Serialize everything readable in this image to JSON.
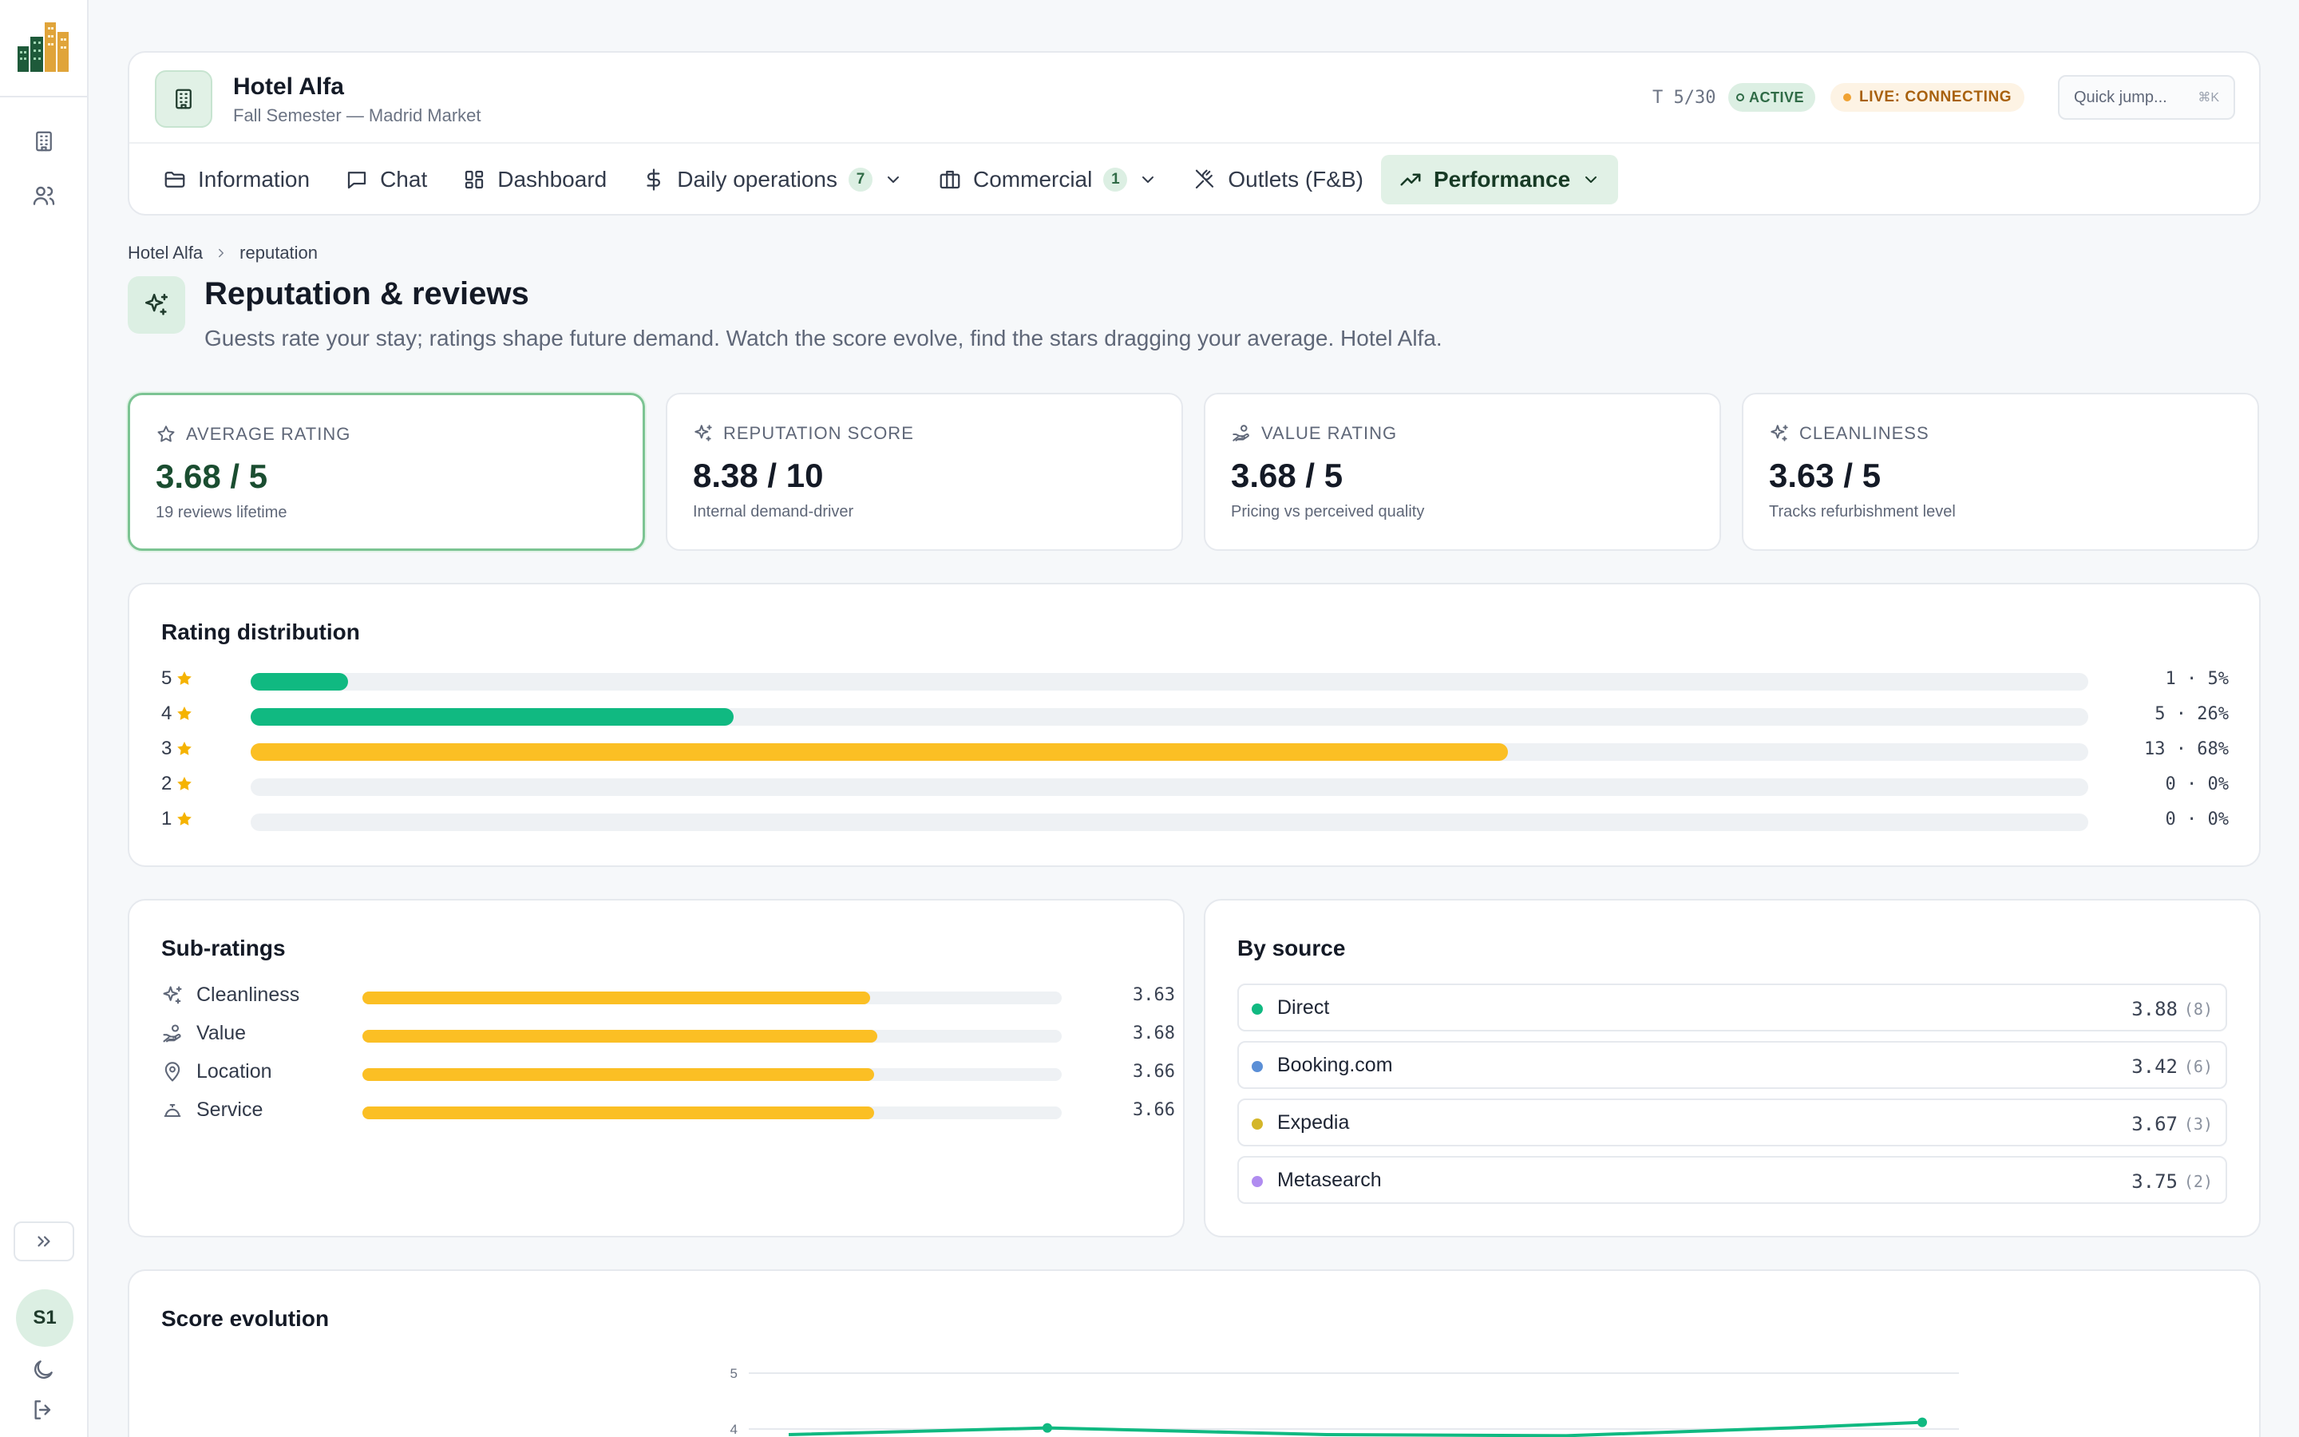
{
  "app": {
    "hotel_name": "Hotel Alfa",
    "hotel_subtitle": "Fall Semester — Madrid Market",
    "turn": "T 5/30",
    "status": "ACTIVE",
    "live": "LIVE: CONNECTING",
    "quick_jump": "Quick jump...",
    "quick_jump_kbd": "⌘K",
    "accent": "#10b981"
  },
  "rail": {
    "avatar": "S1"
  },
  "tabs": [
    {
      "label": "Information",
      "icon": "folder-icon"
    },
    {
      "label": "Chat",
      "icon": "chat-icon"
    },
    {
      "label": "Dashboard",
      "icon": "grid-icon"
    },
    {
      "label": "Daily operations",
      "icon": "dollar-icon",
      "count": "7"
    },
    {
      "label": "Commercial",
      "icon": "briefcase-icon",
      "count": "1"
    },
    {
      "label": "Outlets (F&B)",
      "icon": "utensils-icon"
    },
    {
      "label": "Performance",
      "icon": "trending-up-icon"
    }
  ],
  "breadcrumb": [
    "Hotel Alfa",
    "reputation"
  ],
  "page": {
    "title": "Reputation & reviews",
    "subtitle": "Guests rate your stay; ratings shape future demand. Watch the score evolve, find the stars dragging your average. Hotel Alfa."
  },
  "kpis": [
    {
      "label": "AVERAGE RATING",
      "value": "3.68 / 5",
      "note": "19 reviews lifetime",
      "icon": "star-icon"
    },
    {
      "label": "REPUTATION SCORE",
      "value": "8.38 / 10",
      "note": "Internal demand-driver",
      "icon": "sparkles-icon"
    },
    {
      "label": "VALUE RATING",
      "value": "3.68 / 5",
      "note": "Pricing vs perceived quality",
      "icon": "hand-coins-icon"
    },
    {
      "label": "CLEANLINESS",
      "value": "3.63 / 5",
      "note": "Tracks refurbishment level",
      "icon": "sparkles-icon"
    }
  ],
  "distribution": {
    "title": "Rating distribution",
    "rows": [
      {
        "stars": "5",
        "count_text": "1 · 5%",
        "share": 0.053,
        "color": "#10b981"
      },
      {
        "stars": "4",
        "count_text": "5 · 26%",
        "share": 0.263,
        "color": "#10b981"
      },
      {
        "stars": "3",
        "count_text": "13 · 68%",
        "share": 0.684,
        "color": "#fbbf24"
      },
      {
        "stars": "2",
        "count_text": "0 · 0%",
        "share": 0,
        "color": "#fbbf24"
      },
      {
        "stars": "1",
        "count_text": "0 · 0%",
        "share": 0,
        "color": "#fbbf24"
      }
    ]
  },
  "sub_ratings": {
    "title": "Sub-ratings",
    "rows": [
      {
        "label": "Cleanliness",
        "value": "3.63",
        "fraction": 0.726,
        "icon": "sparkles-icon"
      },
      {
        "label": "Value",
        "value": "3.68",
        "fraction": 0.736,
        "icon": "hand-coins-icon"
      },
      {
        "label": "Location",
        "value": "3.66",
        "fraction": 0.732,
        "icon": "map-pin-icon"
      },
      {
        "label": "Service",
        "value": "3.66",
        "fraction": 0.732,
        "icon": "bell-icon"
      }
    ]
  },
  "by_source": {
    "title": "By source",
    "rows": [
      {
        "name": "Direct",
        "score": "3.88",
        "count": "(8)",
        "color": "#10b981"
      },
      {
        "name": "Booking.com",
        "score": "3.42",
        "count": "(6)",
        "color": "#5b8fd6"
      },
      {
        "name": "Expedia",
        "score": "3.67",
        "count": "(3)",
        "color": "#d4b62a"
      },
      {
        "name": "Metasearch",
        "score": "3.75",
        "count": "(2)",
        "color": "#b08cf0"
      }
    ]
  },
  "score_evolution": {
    "title": "Score evolution"
  },
  "chart_data": {
    "type": "line",
    "title": "Score evolution",
    "ylim": [
      3.95,
      5
    ],
    "ytick_labels": [
      "5",
      "4"
    ],
    "series": [
      {
        "values": [
          3.9,
          4.02,
          3.9,
          3.88,
          4.02,
          4.12
        ],
        "color": "#10b981"
      }
    ],
    "grid": true
  }
}
